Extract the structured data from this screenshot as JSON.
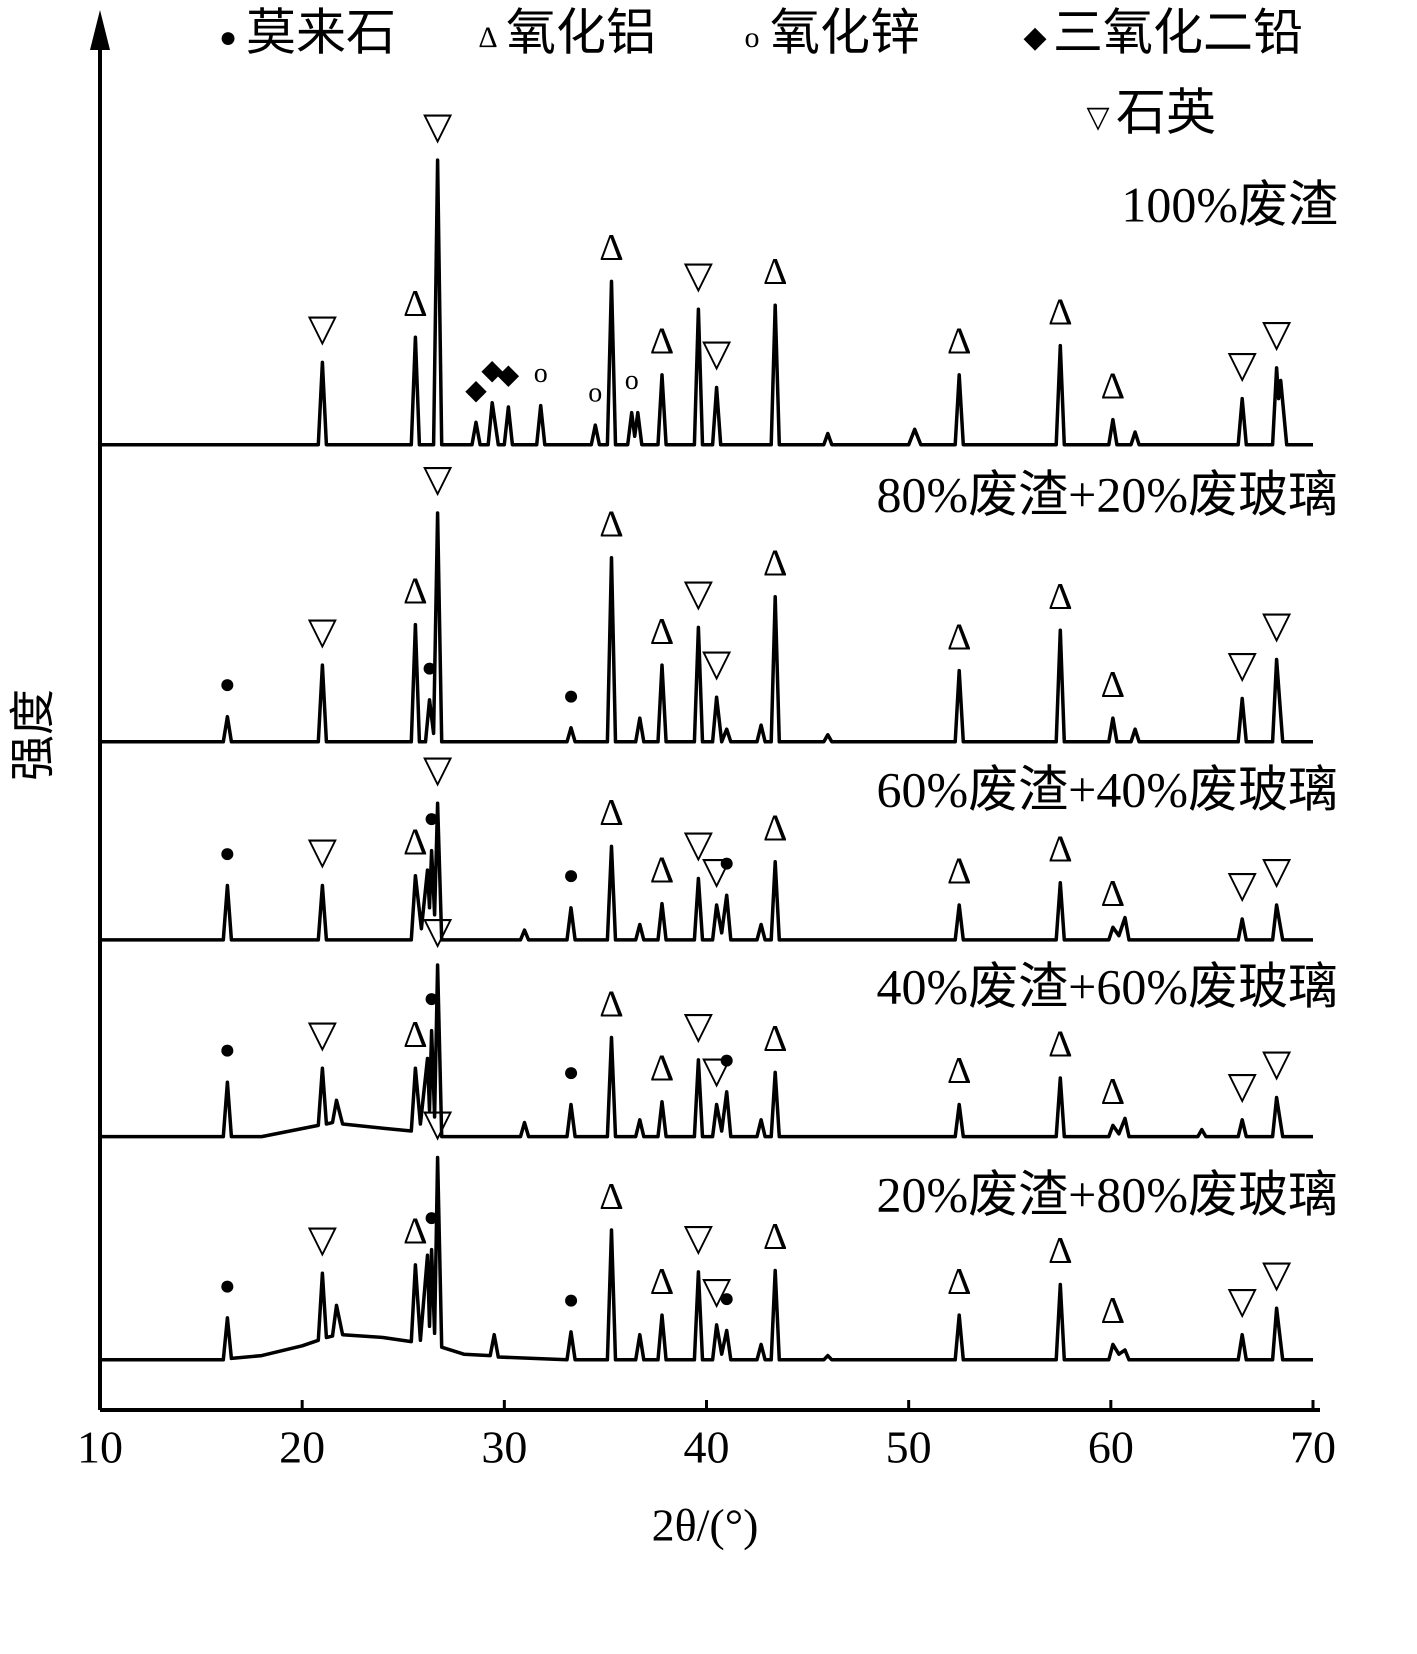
{
  "chart_data": {
    "type": "line",
    "xlabel": "2θ/(°)",
    "ylabel": "强度",
    "xlim": [
      10,
      70
    ],
    "xticks": [
      10,
      20,
      30,
      40,
      50,
      60,
      70
    ],
    "ylim": [
      0,
      100
    ],
    "legend_items": [
      {
        "symbol": "●",
        "name": "莫来石"
      },
      {
        "symbol": "Δ",
        "name": "氧化铝"
      },
      {
        "symbol": "o",
        "name": "氧化锌"
      },
      {
        "symbol": "◆",
        "name": "三氧化二铅"
      },
      {
        "symbol": "▽",
        "name": "石英"
      }
    ],
    "series": [
      {
        "name": "100%废渣",
        "color": "#000000",
        "x": [
          10,
          20.8,
          21.0,
          21.2,
          25.4,
          25.6,
          25.8,
          26.5,
          26.7,
          26.9,
          28.4,
          28.6,
          28.8,
          29.2,
          29.4,
          29.7,
          30.0,
          30.2,
          30.4,
          31.6,
          31.8,
          32.0,
          34.3,
          34.5,
          34.7,
          35.1,
          35.3,
          35.5,
          36.1,
          36.3,
          36.45,
          36.6,
          36.8,
          37.6,
          37.8,
          38.0,
          39.4,
          39.6,
          39.8,
          40.3,
          40.5,
          40.7,
          43.2,
          43.4,
          43.6,
          45.8,
          46.0,
          46.2,
          50.0,
          50.3,
          50.6,
          52.3,
          52.5,
          52.7,
          57.3,
          57.5,
          57.7,
          59.9,
          60.1,
          60.3,
          61.0,
          61.2,
          61.4,
          66.3,
          66.5,
          66.7,
          68.0,
          68.2,
          68.3,
          68.4,
          68.7,
          70
        ],
        "values": [
          69.2,
          69.2,
          75.1,
          69.2,
          69.2,
          76.9,
          69.2,
          69.2,
          89.6,
          69.2,
          69.2,
          70.8,
          69.2,
          69.2,
          72.2,
          69.2,
          69.2,
          71.9,
          69.2,
          69.2,
          72.0,
          69.2,
          69.2,
          70.6,
          69.2,
          69.2,
          80.9,
          69.2,
          69.2,
          71.5,
          69.8,
          71.5,
          69.2,
          69.2,
          74.2,
          69.2,
          69.2,
          78.9,
          69.2,
          69.2,
          73.3,
          69.2,
          69.2,
          79.2,
          69.2,
          69.2,
          70.0,
          69.2,
          69.2,
          70.3,
          69.2,
          69.2,
          74.2,
          69.2,
          69.2,
          76.3,
          69.2,
          69.2,
          71.0,
          69.2,
          69.2,
          70.1,
          69.2,
          69.2,
          72.5,
          69.2,
          69.2,
          74.7,
          72.5,
          73.8,
          69.2,
          69.2
        ],
        "markers": [
          {
            "x": 21.0,
            "label": "▽"
          },
          {
            "x": 25.6,
            "label": "Δ"
          },
          {
            "x": 26.7,
            "label": "▽"
          },
          {
            "x": 28.6,
            "label": "◆"
          },
          {
            "x": 29.4,
            "label": "◆"
          },
          {
            "x": 30.2,
            "label": "◆"
          },
          {
            "x": 31.8,
            "label": "o"
          },
          {
            "x": 34.5,
            "label": "o"
          },
          {
            "x": 35.3,
            "label": "Δ"
          },
          {
            "x": 36.3,
            "label": "o"
          },
          {
            "x": 37.8,
            "label": "Δ"
          },
          {
            "x": 39.6,
            "label": "▽"
          },
          {
            "x": 40.5,
            "label": "▽"
          },
          {
            "x": 43.4,
            "label": "Δ"
          },
          {
            "x": 52.5,
            "label": "Δ"
          },
          {
            "x": 57.5,
            "label": "Δ"
          },
          {
            "x": 60.1,
            "label": "Δ"
          },
          {
            "x": 66.5,
            "label": "▽"
          },
          {
            "x": 68.2,
            "label": "▽"
          }
        ]
      },
      {
        "name": "80%废渣+20%废玻璃",
        "color": "#000000",
        "x": [
          10,
          16.1,
          16.3,
          16.5,
          20.8,
          21.0,
          21.2,
          25.4,
          25.6,
          25.8,
          26.1,
          26.3,
          26.5,
          26.7,
          26.9,
          33.1,
          33.3,
          33.5,
          35.1,
          35.3,
          35.5,
          36.5,
          36.7,
          36.9,
          37.6,
          37.8,
          38.0,
          39.4,
          39.6,
          39.8,
          40.3,
          40.5,
          40.75,
          41.0,
          41.2,
          42.5,
          42.7,
          42.9,
          43.2,
          43.4,
          43.6,
          45.8,
          46.0,
          46.2,
          52.3,
          52.5,
          52.7,
          57.3,
          57.5,
          57.7,
          59.9,
          60.1,
          60.3,
          61.0,
          61.2,
          61.4,
          66.3,
          66.5,
          66.7,
          68.0,
          68.2,
          68.5,
          70
        ],
        "values": [
          47.9,
          47.9,
          49.7,
          47.9,
          47.9,
          53.4,
          47.9,
          47.9,
          56.3,
          47.9,
          47.9,
          50.9,
          48.5,
          64.3,
          47.9,
          47.9,
          48.9,
          47.9,
          47.9,
          61.1,
          47.9,
          47.9,
          49.6,
          47.9,
          47.9,
          53.4,
          47.9,
          47.9,
          56.1,
          47.9,
          47.9,
          51.1,
          47.9,
          48.8,
          47.9,
          47.9,
          49.1,
          47.9,
          47.9,
          58.3,
          47.9,
          47.9,
          48.4,
          47.9,
          47.9,
          53.0,
          47.9,
          47.9,
          55.9,
          47.9,
          47.9,
          49.6,
          47.9,
          47.9,
          48.8,
          47.9,
          47.9,
          51.0,
          47.9,
          47.9,
          53.8,
          47.9,
          47.9
        ],
        "markers": [
          {
            "x": 16.3,
            "label": "●"
          },
          {
            "x": 21.0,
            "label": "▽"
          },
          {
            "x": 25.6,
            "label": "Δ"
          },
          {
            "x": 26.3,
            "label": "●"
          },
          {
            "x": 26.7,
            "label": "▽"
          },
          {
            "x": 33.3,
            "label": "●"
          },
          {
            "x": 35.3,
            "label": "Δ"
          },
          {
            "x": 37.8,
            "label": "Δ"
          },
          {
            "x": 39.6,
            "label": "▽"
          },
          {
            "x": 40.5,
            "label": "▽"
          },
          {
            "x": 43.4,
            "label": "Δ"
          },
          {
            "x": 52.5,
            "label": "Δ"
          },
          {
            "x": 57.5,
            "label": "Δ"
          },
          {
            "x": 60.1,
            "label": "Δ"
          },
          {
            "x": 66.5,
            "label": "▽"
          },
          {
            "x": 68.2,
            "label": "▽"
          }
        ]
      },
      {
        "name": "60%废渣+40%废玻璃",
        "color": "#000000",
        "x": [
          10,
          16.1,
          16.3,
          16.5,
          20.8,
          21.0,
          21.2,
          25.4,
          25.6,
          25.9,
          26.2,
          26.3,
          26.4,
          26.55,
          26.7,
          26.9,
          30.8,
          31.0,
          31.2,
          33.1,
          33.3,
          33.5,
          35.1,
          35.3,
          35.5,
          36.5,
          36.7,
          36.9,
          37.6,
          37.8,
          38.0,
          39.4,
          39.6,
          39.8,
          40.3,
          40.5,
          40.75,
          41.0,
          41.2,
          42.5,
          42.7,
          42.9,
          43.2,
          43.4,
          43.6,
          52.3,
          52.5,
          52.7,
          57.3,
          57.5,
          57.7,
          59.9,
          60.1,
          60.4,
          60.7,
          60.9,
          66.3,
          66.5,
          66.7,
          68.0,
          68.2,
          68.5,
          70
        ],
        "values": [
          33.7,
          33.7,
          37.6,
          33.7,
          33.7,
          37.6,
          33.7,
          33.7,
          38.3,
          34.5,
          38.7,
          36.0,
          40.1,
          35.5,
          43.5,
          33.7,
          33.7,
          34.4,
          33.7,
          33.7,
          36.0,
          33.7,
          33.7,
          40.4,
          33.7,
          33.7,
          34.8,
          33.7,
          33.7,
          36.3,
          33.7,
          33.7,
          38.1,
          33.7,
          33.7,
          36.2,
          34.2,
          36.9,
          33.7,
          33.7,
          34.8,
          33.7,
          33.7,
          39.3,
          33.7,
          33.7,
          36.2,
          33.7,
          33.7,
          37.8,
          33.7,
          33.7,
          34.6,
          34.0,
          35.3,
          33.7,
          33.7,
          35.2,
          33.7,
          33.7,
          36.2,
          33.7,
          33.7
        ],
        "markers": [
          {
            "x": 16.3,
            "label": "●"
          },
          {
            "x": 21.0,
            "label": "▽"
          },
          {
            "x": 25.6,
            "label": "Δ"
          },
          {
            "x": 26.4,
            "label": "●"
          },
          {
            "x": 26.7,
            "label": "▽"
          },
          {
            "x": 33.3,
            "label": "●"
          },
          {
            "x": 35.3,
            "label": "Δ"
          },
          {
            "x": 37.8,
            "label": "Δ"
          },
          {
            "x": 39.6,
            "label": "▽"
          },
          {
            "x": 40.5,
            "label": "▽"
          },
          {
            "x": 41.0,
            "label": "●"
          },
          {
            "x": 43.4,
            "label": "Δ"
          },
          {
            "x": 52.5,
            "label": "Δ"
          },
          {
            "x": 57.5,
            "label": "Δ"
          },
          {
            "x": 60.1,
            "label": "Δ"
          },
          {
            "x": 66.5,
            "label": "▽"
          },
          {
            "x": 68.2,
            "label": "▽"
          }
        ]
      },
      {
        "name": "40%废渣+60%废玻璃",
        "color": "#000000",
        "x": [
          10,
          16.1,
          16.3,
          16.5,
          18.0,
          20.8,
          21.0,
          21.2,
          21.5,
          21.7,
          22.0,
          24.0,
          25.4,
          25.6,
          25.85,
          26.2,
          26.3,
          26.4,
          26.55,
          26.7,
          26.9,
          30.8,
          31.0,
          31.2,
          33.1,
          33.3,
          33.5,
          35.1,
          35.3,
          35.5,
          36.5,
          36.7,
          36.9,
          37.6,
          37.8,
          38.0,
          39.4,
          39.6,
          39.8,
          40.3,
          40.5,
          40.75,
          41.0,
          41.2,
          42.5,
          42.7,
          42.9,
          43.2,
          43.4,
          43.6,
          52.3,
          52.5,
          52.7,
          57.3,
          57.5,
          57.7,
          59.9,
          60.1,
          60.4,
          60.7,
          60.9,
          64.3,
          64.5,
          64.7,
          66.3,
          66.5,
          66.7,
          68.0,
          68.2,
          68.5,
          70
        ],
        "values": [
          19.6,
          19.6,
          23.5,
          19.6,
          19.6,
          20.4,
          24.5,
          20.5,
          20.6,
          22.2,
          20.5,
          20.2,
          20.0,
          24.5,
          20.5,
          25.2,
          21.5,
          27.2,
          21.0,
          31.9,
          19.6,
          19.6,
          20.6,
          19.6,
          19.6,
          21.9,
          19.6,
          19.6,
          26.7,
          19.6,
          19.6,
          20.8,
          19.6,
          19.6,
          22.1,
          19.6,
          19.6,
          25.1,
          19.6,
          19.6,
          21.9,
          20.0,
          22.8,
          19.6,
          19.6,
          20.8,
          19.6,
          19.6,
          24.2,
          19.6,
          19.6,
          21.9,
          19.6,
          19.6,
          23.8,
          19.6,
          19.6,
          20.4,
          19.8,
          20.9,
          19.6,
          19.6,
          20.1,
          19.6,
          19.6,
          20.8,
          19.6,
          19.6,
          22.4,
          19.6,
          19.6
        ],
        "markers": [
          {
            "x": 16.3,
            "label": "●"
          },
          {
            "x": 21.0,
            "label": "▽"
          },
          {
            "x": 25.6,
            "label": "Δ"
          },
          {
            "x": 26.4,
            "label": "●"
          },
          {
            "x": 26.7,
            "label": "▽"
          },
          {
            "x": 33.3,
            "label": "●"
          },
          {
            "x": 35.3,
            "label": "Δ"
          },
          {
            "x": 37.8,
            "label": "Δ"
          },
          {
            "x": 39.6,
            "label": "▽"
          },
          {
            "x": 40.5,
            "label": "▽"
          },
          {
            "x": 41.0,
            "label": "●"
          },
          {
            "x": 43.4,
            "label": "Δ"
          },
          {
            "x": 52.5,
            "label": "Δ"
          },
          {
            "x": 57.5,
            "label": "Δ"
          },
          {
            "x": 60.1,
            "label": "Δ"
          },
          {
            "x": 66.5,
            "label": "▽"
          },
          {
            "x": 68.2,
            "label": "▽"
          }
        ]
      },
      {
        "name": "20%废渣+80%废玻璃",
        "color": "#000000",
        "x": [
          10,
          16.1,
          16.3,
          16.5,
          18.0,
          20.0,
          20.8,
          21.0,
          21.2,
          21.5,
          21.7,
          22.0,
          24.0,
          25.4,
          25.6,
          25.85,
          26.2,
          26.3,
          26.4,
          26.55,
          26.7,
          26.9,
          28.0,
          29.3,
          29.5,
          29.7,
          33.1,
          33.3,
          33.5,
          35.1,
          35.3,
          35.5,
          36.5,
          36.7,
          36.9,
          37.6,
          37.8,
          38.0,
          39.4,
          39.6,
          39.8,
          40.3,
          40.5,
          40.75,
          41.0,
          41.2,
          42.5,
          42.7,
          42.9,
          43.2,
          43.4,
          43.6,
          45.8,
          46.0,
          46.2,
          52.3,
          52.5,
          52.7,
          57.3,
          57.5,
          57.7,
          59.9,
          60.1,
          60.4,
          60.7,
          60.9,
          66.3,
          66.5,
          66.7,
          68.0,
          68.2,
          68.5,
          70
        ],
        "values": [
          3.6,
          3.6,
          6.6,
          3.7,
          3.9,
          4.6,
          5.0,
          9.8,
          5.2,
          5.3,
          7.5,
          5.4,
          5.2,
          4.9,
          10.4,
          5.0,
          11.1,
          6.0,
          11.5,
          5.5,
          18.1,
          4.5,
          4.0,
          3.9,
          5.4,
          3.8,
          3.6,
          5.6,
          3.6,
          3.6,
          12.9,
          3.6,
          3.6,
          5.4,
          3.6,
          3.6,
          6.8,
          3.6,
          3.6,
          9.9,
          3.6,
          3.6,
          6.1,
          4.0,
          5.7,
          3.6,
          3.6,
          4.7,
          3.6,
          3.6,
          10.0,
          3.6,
          3.6,
          3.9,
          3.6,
          3.6,
          6.8,
          3.6,
          3.6,
          9.0,
          3.6,
          3.6,
          4.7,
          4.0,
          4.3,
          3.6,
          3.6,
          5.4,
          3.6,
          3.6,
          7.3,
          3.6,
          3.6
        ],
        "markers": [
          {
            "x": 16.3,
            "label": "●"
          },
          {
            "x": 21.0,
            "label": "▽"
          },
          {
            "x": 25.6,
            "label": "Δ"
          },
          {
            "x": 26.4,
            "label": "●"
          },
          {
            "x": 26.7,
            "label": "▽"
          },
          {
            "x": 33.3,
            "label": "●"
          },
          {
            "x": 35.3,
            "label": "Δ"
          },
          {
            "x": 37.8,
            "label": "Δ"
          },
          {
            "x": 39.6,
            "label": "▽"
          },
          {
            "x": 40.5,
            "label": "▽"
          },
          {
            "x": 41.0,
            "label": "●"
          },
          {
            "x": 43.4,
            "label": "Δ"
          },
          {
            "x": 52.5,
            "label": "Δ"
          },
          {
            "x": 57.5,
            "label": "Δ"
          },
          {
            "x": 60.1,
            "label": "Δ"
          },
          {
            "x": 66.5,
            "label": "▽"
          },
          {
            "x": 68.2,
            "label": "▽"
          }
        ]
      }
    ]
  }
}
